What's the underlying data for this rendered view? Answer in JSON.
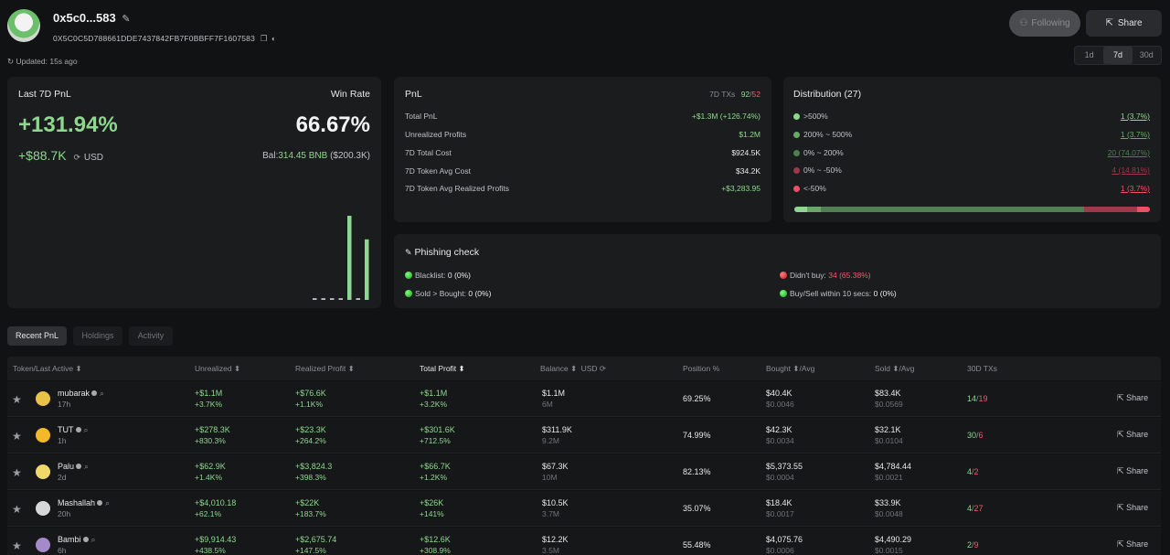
{
  "header": {
    "address_short": "0x5c0...583",
    "address_full": "0X5C0C5D788661DDE7437842FB7F0BBFF7F1607583",
    "updated": "Updated: 15s ago",
    "following_label": "Following",
    "share_label": "Share",
    "ranges": [
      "1d",
      "7d",
      "30d"
    ],
    "active_range": "7d"
  },
  "stats": {
    "pnl_label": "Last 7D PnL",
    "winrate_label": "Win Rate",
    "pnl_pct": "+131.94%",
    "pnl_usd": "+$88.7K",
    "usd_label": "USD",
    "win_rate": "66.67%",
    "bal_label": "Bal:",
    "bal_value": "314.45 BNB",
    "bal_usd": "($200.3K)",
    "bars": [
      0.02,
      0.02,
      0.02,
      0.02,
      1.0,
      0.02,
      0.72
    ]
  },
  "pnl": {
    "title": "PnL",
    "txs_label": "7D TXs",
    "txs_buy": "92",
    "txs_sell": "52",
    "rows": [
      {
        "label": "Total PnL",
        "value": "+$1.3M (+126.74%)",
        "color": "#8ed78e"
      },
      {
        "label": "Unrealized Profits",
        "value": "$1.2M",
        "color": "#8ed78e"
      },
      {
        "label": "7D Total Cost",
        "value": "$924.5K",
        "color": "#e8e8e8"
      },
      {
        "label": "7D Token Avg Cost",
        "value": "$34.2K",
        "color": "#e8e8e8"
      },
      {
        "label": "7D Token Avg Realized Profits",
        "value": "+$3,283.95",
        "color": "#8ed78e"
      }
    ]
  },
  "distribution": {
    "title": "Distribution (27)",
    "rows": [
      {
        "label": ">500%",
        "value": "1 (3.7%)",
        "color": "#8ed78e",
        "pct": 3.7
      },
      {
        "label": "200% ~ 500%",
        "value": "1 (3.7%)",
        "color": "#6aa86a",
        "pct": 3.7
      },
      {
        "label": "0% ~ 200%",
        "value": "20 (74.07%)",
        "color": "#4f7f52",
        "pct": 74.07
      },
      {
        "label": "0% ~ -50%",
        "value": "4 (14.81%)",
        "color": "#9a3a4a",
        "pct": 14.81
      },
      {
        "label": "<-50%",
        "value": "1 (3.7%)",
        "color": "#ef4f66",
        "pct": 3.7
      }
    ]
  },
  "phishing": {
    "title": "Phishing check",
    "blacklist_label": "Blacklist:",
    "blacklist_value": "0 (0%)",
    "sold_label": "Sold > Bought:",
    "sold_value": "0 (0%)",
    "didnt_buy_label": "Didn't buy:",
    "didnt_buy_value": "34 (65.38%)",
    "buysell_label": "Buy/Sell within 10 secs:",
    "buysell_value": "0 (0%)"
  },
  "tabs": [
    "Recent PnL",
    "Holdings",
    "Activity"
  ],
  "table": {
    "headers": {
      "token": "Token/Last Active",
      "unrealized": "Unrealized",
      "realized": "Realized Profit",
      "total": "Total Profit",
      "balance": "Balance",
      "usd": "USD",
      "position": "Position %",
      "bought": "Bought",
      "bought_avg": "/Avg",
      "sold": "Sold",
      "sold_avg": "/Avg",
      "txs": "30D TXs"
    },
    "share_label": "Share",
    "rows": [
      {
        "name": "mubarak",
        "age": "17h",
        "icon": "#e9c24a",
        "unreal": "+$1.1M",
        "unreal_pct": "+3.7K%",
        "real": "+$76.6K",
        "real_pct": "+1.1K%",
        "total": "+$1.1M",
        "total_pct": "+3.2K%",
        "bal": "$1.1M",
        "bal_sub": "6M",
        "pos": "69.25%",
        "bought": "$40.4K",
        "bought_avg": "$0.0046",
        "sold": "$83.4K",
        "sold_avg": "$0.0569",
        "tx_buy": "14",
        "tx_sell": "19"
      },
      {
        "name": "TUT",
        "age": "1h",
        "icon": "#f3b92b",
        "unreal": "+$278.3K",
        "unreal_pct": "+830.3%",
        "real": "+$23.3K",
        "real_pct": "+264.2%",
        "total": "+$301.6K",
        "total_pct": "+712.5%",
        "bal": "$311.9K",
        "bal_sub": "9.2M",
        "pos": "74.99%",
        "bought": "$42.3K",
        "bought_avg": "$0.0034",
        "sold": "$32.1K",
        "sold_avg": "$0.0104",
        "tx_buy": "30",
        "tx_sell": "6"
      },
      {
        "name": "Palu",
        "age": "2d",
        "icon": "#f0d86a",
        "unreal": "+$62.9K",
        "unreal_pct": "+1.4K%",
        "real": "+$3,824.3",
        "real_pct": "+398.3%",
        "total": "+$66.7K",
        "total_pct": "+1.2K%",
        "bal": "$67.3K",
        "bal_sub": "10M",
        "pos": "82.13%",
        "bought": "$5,373.55",
        "bought_avg": "$0.0004",
        "sold": "$4,784.44",
        "sold_avg": "$0.0021",
        "tx_buy": "4",
        "tx_sell": "2"
      },
      {
        "name": "Mashallah",
        "age": "20h",
        "icon": "#d7d7d7",
        "unreal": "+$4,010.18",
        "unreal_pct": "+62.1%",
        "real": "+$22K",
        "real_pct": "+183.7%",
        "total": "+$26K",
        "total_pct": "+141%",
        "bal": "$10.5K",
        "bal_sub": "3.7M",
        "pos": "35.07%",
        "bought": "$18.4K",
        "bought_avg": "$0.0017",
        "sold": "$33.9K",
        "sold_avg": "$0.0048",
        "tx_buy": "4",
        "tx_sell": "27"
      },
      {
        "name": "Bambi",
        "age": "6h",
        "icon": "#a58ac9",
        "unreal": "+$9,914.43",
        "unreal_pct": "+438.5%",
        "real": "+$2,675.74",
        "real_pct": "+147.5%",
        "total": "+$12.6K",
        "total_pct": "+308.9%",
        "bal": "$12.2K",
        "bal_sub": "3.5M",
        "pos": "55.48%",
        "bought": "$4,075.76",
        "bought_avg": "$0.0006",
        "sold": "$4,490.29",
        "sold_avg": "$0.0015",
        "tx_buy": "2",
        "tx_sell": "9"
      }
    ]
  }
}
